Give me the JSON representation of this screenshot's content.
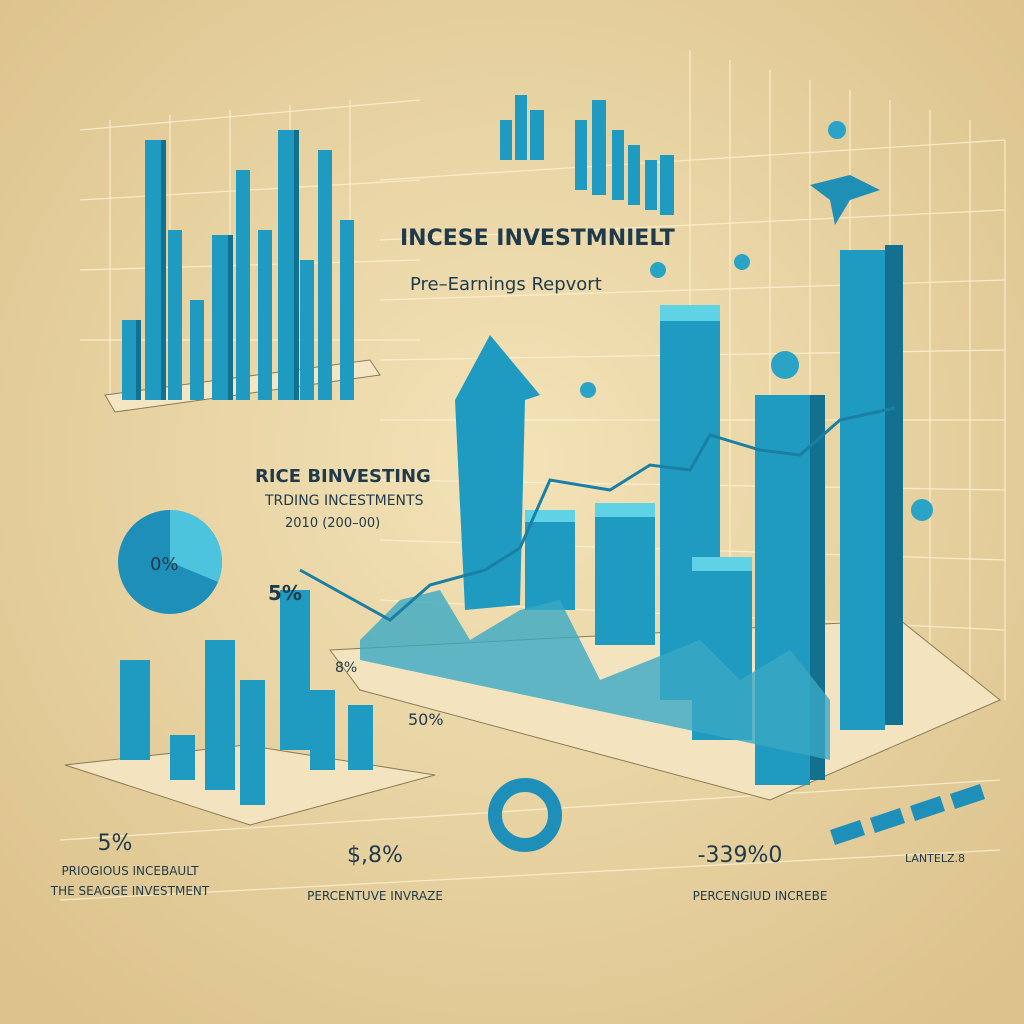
{
  "header": {
    "title": "INCESE INVESTMNIELT",
    "subtitle": "Pre–Earnings Repvort"
  },
  "panel": {
    "title": "RICE BINVESTING",
    "subtitle": "TRDING INCESTMENTS",
    "range": "2010 (200–00)",
    "pie_label": "0%",
    "bar_label": "5%",
    "axis_label": "8%",
    "side_label": "50%"
  },
  "stats": [
    {
      "value": "5%",
      "label": "PRIOGIOUS INCEBAULT",
      "sublabel": "THE SEAGGE INVESTMENT"
    },
    {
      "value": "$,8%",
      "label": "PERCENTUVE INVRAZE"
    },
    {
      "value": "-339%0",
      "label": "PERCENGIUD INCREBE"
    }
  ],
  "legend": "LANTELZ.8"
}
